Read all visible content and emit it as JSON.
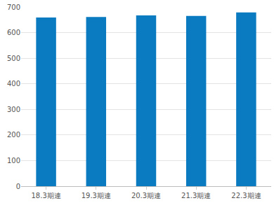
{
  "chart_data": {
    "type": "bar",
    "categories": [
      "18.3期連",
      "19.3期連",
      "20.3期連",
      "21.3期連",
      "22.3期連"
    ],
    "values": [
      659,
      661,
      667,
      665,
      679
    ],
    "color": "#0a7bc1",
    "ylim": [
      0,
      700
    ],
    "yticks": [
      0,
      100,
      200,
      300,
      400,
      500,
      600,
      700
    ],
    "grid": true
  }
}
